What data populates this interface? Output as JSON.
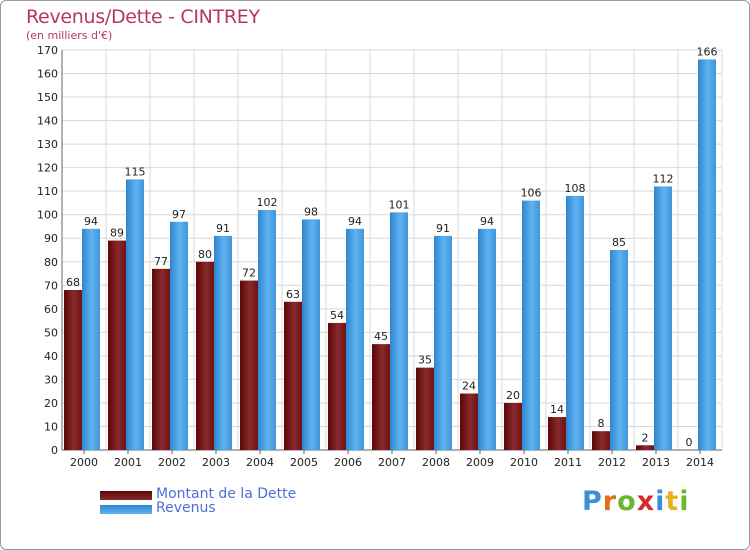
{
  "header": {
    "title": "Revenus/Dette - CINTREY",
    "subtitle": "(en milliers d'€)"
  },
  "colors": {
    "dette": "#6b0f10",
    "revenus": "#4aa3e8",
    "grid": "#d8d8d8",
    "axis_text": "#222222",
    "title": "#b8336a",
    "legend_text": "#4b6fd8"
  },
  "chart_data": {
    "type": "bar",
    "title": "Revenus/Dette - CINTREY",
    "subtitle": "(en milliers d'€)",
    "categories": [
      "2000",
      "2001",
      "2002",
      "2003",
      "2004",
      "2005",
      "2006",
      "2007",
      "2008",
      "2009",
      "2010",
      "2011",
      "2012",
      "2013",
      "2014"
    ],
    "series": [
      {
        "name": "Montant de la Dette",
        "values": [
          68,
          89,
          77,
          80,
          72,
          63,
          54,
          45,
          35,
          24,
          20,
          14,
          8,
          2,
          0
        ]
      },
      {
        "name": "Revenus",
        "values": [
          94,
          115,
          97,
          91,
          102,
          98,
          94,
          101,
          91,
          94,
          106,
          108,
          85,
          112,
          166
        ]
      }
    ],
    "ylim": [
      0,
      170
    ],
    "yticks": [
      0,
      10,
      20,
      30,
      40,
      50,
      60,
      70,
      80,
      90,
      100,
      110,
      120,
      130,
      140,
      150,
      160,
      170
    ],
    "grid": true,
    "legend": "bottom-left"
  },
  "legend": {
    "items": [
      {
        "label": "Montant de la Dette"
      },
      {
        "label": "Revenus"
      }
    ]
  },
  "logo": {
    "letters": [
      "P",
      "r",
      "o",
      "x",
      "i",
      "t",
      "i"
    ],
    "colors": [
      "#3a8fd6",
      "#e0701e",
      "#6ab82c",
      "#d62a2a",
      "#3a8fd6",
      "#e8b21e",
      "#6ab82c"
    ]
  }
}
